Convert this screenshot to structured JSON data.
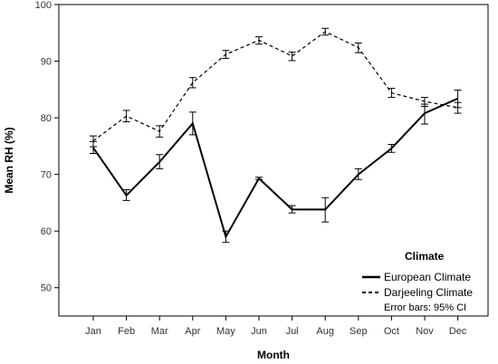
{
  "chart_data": {
    "type": "line",
    "xlabel": "Month",
    "ylabel": "Mean RH (%)",
    "ylim": [
      45,
      100
    ],
    "y_ticks": [
      50,
      60,
      70,
      80,
      90,
      100
    ],
    "categories": [
      "Jan",
      "Feb",
      "Mar",
      "Apr",
      "May",
      "Jun",
      "Jul",
      "Aug",
      "Sep",
      "Oct",
      "Nov",
      "Dec"
    ],
    "legend": {
      "title": "Climate",
      "placement": "bottom-right",
      "note": "Error bars: 95% CI"
    },
    "grid": false,
    "series": [
      {
        "name": "European Climate",
        "style": "solid",
        "color": "#000000",
        "values": [
          74.7,
          66.3,
          72.2,
          79.0,
          59.0,
          69.3,
          63.8,
          63.8,
          70.0,
          74.6,
          80.8,
          83.4
        ],
        "ci_low": [
          73.7,
          65.4,
          71.0,
          77.0,
          58.0,
          69.1,
          63.2,
          61.6,
          69.1,
          73.9,
          78.9,
          81.8
        ],
        "ci_high": [
          75.8,
          67.3,
          73.5,
          81.0,
          60.0,
          69.5,
          64.5,
          65.9,
          71.0,
          75.3,
          82.4,
          84.9
        ]
      },
      {
        "name": "Darjeeling Climate",
        "style": "dashed",
        "color": "#000000",
        "values": [
          75.9,
          80.3,
          77.6,
          86.2,
          91.2,
          93.7,
          90.9,
          95.2,
          92.4,
          84.4,
          82.9,
          81.8
        ],
        "ci_low": [
          74.9,
          79.3,
          76.6,
          85.3,
          90.5,
          93.0,
          90.1,
          94.6,
          91.5,
          83.6,
          82.0,
          80.8
        ],
        "ci_high": [
          76.8,
          81.3,
          78.6,
          87.1,
          91.9,
          94.3,
          91.6,
          95.8,
          93.2,
          85.2,
          83.6,
          82.7
        ]
      }
    ]
  }
}
